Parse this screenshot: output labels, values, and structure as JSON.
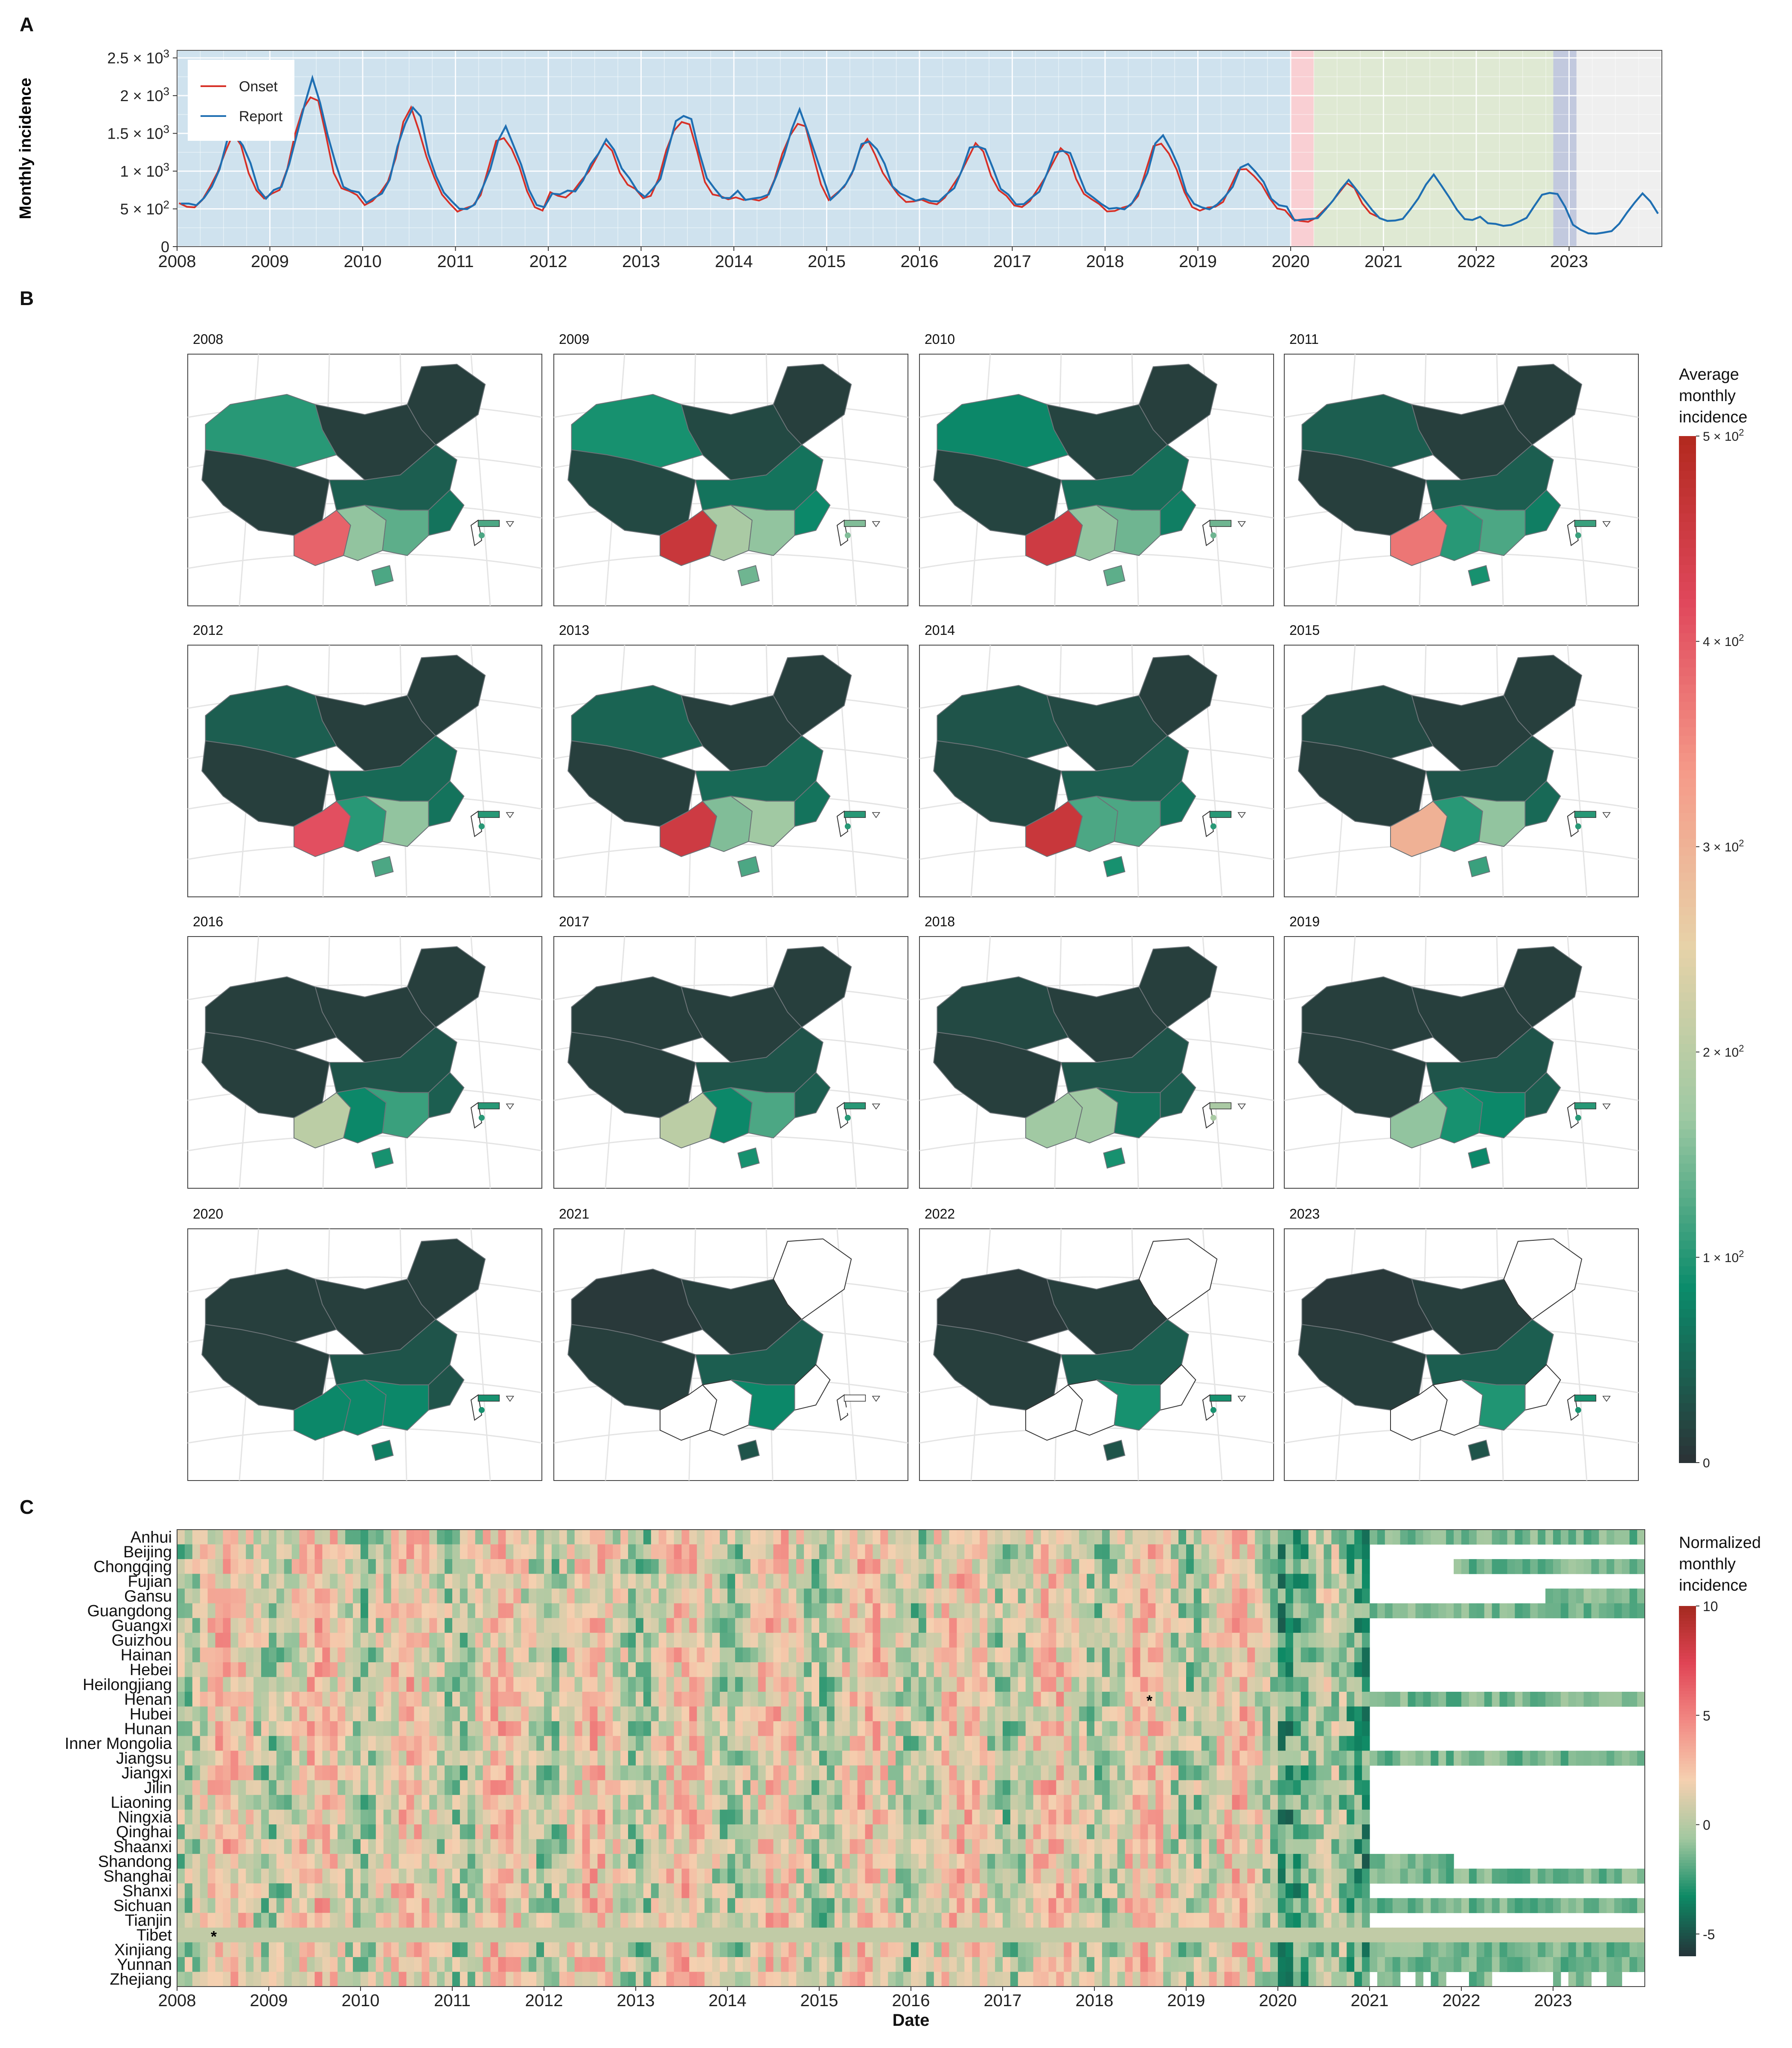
{
  "panel_labels": {
    "a": "A",
    "b": "B",
    "c": "C"
  },
  "colors": {
    "onset": "#d73027",
    "report": "#1f6fb2",
    "phase_pre": "#cfe2ee",
    "phase_red": "#f9cfd3",
    "phase_green": "#dfe9d3",
    "phase_purple": "#c2c9de",
    "phase_grey": "#efefef",
    "map_dark": "#2b3437",
    "map_scale": [
      "#2b3437",
      "#0b8c6b",
      "#9ec9a3",
      "#e7d2a8",
      "#f59b89",
      "#e0485c",
      "#b1281d"
    ],
    "heat_scale": [
      "#24353a",
      "#0e8a65",
      "#a3c8a0",
      "#f5d0b0",
      "#f28a84",
      "#e04455",
      "#a3291e"
    ]
  },
  "chart_data": [
    {
      "type": "line",
      "id": "A",
      "xlabel": "",
      "ylabel": "Monthly incidence",
      "ylim": [
        0,
        2600
      ],
      "yticks": [
        "0",
        "5 × 10²",
        "1 × 10³",
        "1.5 × 10³",
        "2 × 10³",
        "2.5 × 10³"
      ],
      "ytick_values": [
        0,
        500,
        1000,
        1500,
        2000,
        2500
      ],
      "xticks": [
        "2008",
        "2009",
        "2010",
        "2011",
        "2012",
        "2013",
        "2014",
        "2015",
        "2016",
        "2017",
        "2018",
        "2019",
        "2020",
        "2021",
        "2022",
        "2023"
      ],
      "x_start_year": 2008,
      "legend": {
        "position": "top-left",
        "entries": [
          "Onset",
          "Report"
        ]
      },
      "shaded_periods": [
        {
          "from": 2008.0,
          "to": 2020.0,
          "color": "#cfe2ee"
        },
        {
          "from": 2020.0,
          "to": 2020.25,
          "color": "#f9cfd3"
        },
        {
          "from": 2020.25,
          "to": 2022.83,
          "color": "#dfe9d3"
        },
        {
          "from": 2022.83,
          "to": 2023.08,
          "color": "#c2c9de"
        },
        {
          "from": 2023.08,
          "to": 2024.0,
          "color": "#efefef"
        }
      ],
      "peaks": [
        {
          "year": 2008,
          "min": 550,
          "peak": 1500,
          "peak_month": 8
        },
        {
          "year": 2009,
          "min": 700,
          "peak": 2150,
          "peak_month": 6
        },
        {
          "year": 2010,
          "min": 600,
          "peak": 1850,
          "peak_month": 7
        },
        {
          "year": 2011,
          "min": 480,
          "peak": 1550,
          "peak_month": 7
        },
        {
          "year": 2012,
          "min": 700,
          "peak": 1380,
          "peak_month": 8
        },
        {
          "year": 2013,
          "min": 640,
          "peak": 1800,
          "peak_month": 6
        },
        {
          "year": 2014,
          "min": 620,
          "peak": 1750,
          "peak_month": 9
        },
        {
          "year": 2015,
          "min": 630,
          "peak": 1420,
          "peak_month": 6
        },
        {
          "year": 2016,
          "min": 600,
          "peak": 1380,
          "peak_month": 8
        },
        {
          "year": 2017,
          "min": 560,
          "peak": 1320,
          "peak_month": 7
        },
        {
          "year": 2018,
          "min": 490,
          "peak": 1470,
          "peak_month": 8
        },
        {
          "year": 2019,
          "min": 500,
          "peak": 1100,
          "peak_month": 7
        },
        {
          "year": 2020,
          "min": 350,
          "peak": 850,
          "peak_month": 8
        },
        {
          "year": 2021,
          "min": 330,
          "peak": 920,
          "peak_month": 7
        },
        {
          "year": 2022,
          "min": 280,
          "peak": 740,
          "peak_month": 10
        },
        {
          "year": 2023,
          "min": 170,
          "peak": 680,
          "peak_month": 10
        }
      ],
      "onset_end_year": 2021.0
    },
    {
      "type": "heatmap",
      "id": "B",
      "title": "",
      "panels": [
        "2008",
        "2009",
        "2010",
        "2011",
        "2012",
        "2013",
        "2014",
        "2015",
        "2016",
        "2017",
        "2018",
        "2019",
        "2020",
        "2021",
        "2022",
        "2023"
      ],
      "legend_title": [
        "Average",
        "monthly",
        "incidence"
      ],
      "legend_ticks": [
        "0",
        "1 × 10²",
        "2 × 10²",
        "3 × 10²",
        "4 × 10²",
        "5 × 10²"
      ],
      "legend_values": [
        0,
        100,
        200,
        300,
        400,
        500
      ],
      "region_values": [
        {
          "NW": 100,
          "YN": 390,
          "GX": 160,
          "GD": 130,
          "HN": 120,
          "S": 40,
          "FJ": 60,
          "TW": 120,
          "N": 10,
          "NE": 10
        },
        {
          "NW": 90,
          "YN": 460,
          "GX": 180,
          "GD": 160,
          "HN": 140,
          "S": 60,
          "FJ": 80,
          "TW": 150,
          "N": 20,
          "NE": 10
        },
        {
          "NW": 80,
          "YN": 450,
          "GX": 160,
          "GD": 140,
          "HN": 130,
          "S": 55,
          "FJ": 70,
          "TW": 140,
          "N": 15,
          "NE": 10
        },
        {
          "NW": 40,
          "YN": 370,
          "GX": 100,
          "GD": 120,
          "HN": 90,
          "S": 40,
          "FJ": 70,
          "TW": 110,
          "N": 10,
          "NE": 10
        },
        {
          "NW": 40,
          "YN": 410,
          "GX": 100,
          "GD": 160,
          "HN": 120,
          "S": 50,
          "FJ": 60,
          "TW": 100,
          "N": 10,
          "NE": 10
        },
        {
          "NW": 45,
          "YN": 450,
          "GX": 150,
          "GD": 170,
          "HN": 120,
          "S": 50,
          "FJ": 60,
          "TW": 100,
          "N": 10,
          "NE": 10
        },
        {
          "NW": 30,
          "YN": 460,
          "GX": 120,
          "GD": 120,
          "HN": 90,
          "S": 40,
          "FJ": 60,
          "TW": 100,
          "N": 20,
          "NE": 10
        },
        {
          "NW": 20,
          "YN": 300,
          "GX": 100,
          "GD": 160,
          "HN": 110,
          "S": 30,
          "FJ": 50,
          "TW": 100,
          "N": 10,
          "NE": 10
        },
        {
          "NW": 10,
          "YN": 200,
          "GX": 80,
          "GD": 110,
          "HN": 90,
          "S": 30,
          "FJ": 40,
          "TW": 100,
          "N": 10,
          "NE": 10
        },
        {
          "NW": 10,
          "YN": 200,
          "GX": 80,
          "GD": 120,
          "HN": 90,
          "S": 30,
          "FJ": 40,
          "TW": 100,
          "N": 10,
          "NE": 10
        },
        {
          "NW": 20,
          "YN": 170,
          "GX": 170,
          "GD": 60,
          "HN": 90,
          "S": 30,
          "FJ": 40,
          "TW": 180,
          "N": 10,
          "NE": 10
        },
        {
          "NW": 10,
          "YN": 160,
          "GX": 90,
          "GD": 80,
          "HN": 80,
          "S": 30,
          "FJ": 40,
          "TW": 100,
          "N": 10,
          "NE": 10
        },
        {
          "NW": 10,
          "YN": 80,
          "GX": 80,
          "GD": 80,
          "HN": 70,
          "S": 30,
          "FJ": 30,
          "TW": 90,
          "N": 10,
          "NE": 10
        },
        {
          "NW": 5,
          "YN": -1,
          "GX": -1,
          "GD": 80,
          "HN": 30,
          "S": 40,
          "FJ": -1,
          "TW": -1,
          "N": 10,
          "NE": -1
        },
        {
          "NW": 5,
          "YN": -1,
          "GX": -1,
          "GD": 90,
          "HN": 30,
          "S": 40,
          "FJ": -1,
          "TW": 90,
          "N": 10,
          "NE": -1
        },
        {
          "NW": 5,
          "YN": -1,
          "GX": -1,
          "GD": 95,
          "HN": 30,
          "S": 40,
          "FJ": -1,
          "TW": 90,
          "N": 10,
          "NE": -1
        }
      ]
    },
    {
      "type": "heatmap",
      "id": "C",
      "xlabel": "Date",
      "ylabel": "",
      "xticks": [
        "2008",
        "2009",
        "2010",
        "2011",
        "2012",
        "2013",
        "2014",
        "2015",
        "2016",
        "2017",
        "2018",
        "2019",
        "2020",
        "2021",
        "2022",
        "2023"
      ],
      "rows": [
        "Anhui",
        "Beijing",
        "Chongqing",
        "Fujian",
        "Gansu",
        "Guangdong",
        "Guangxi",
        "Guizhou",
        "Hainan",
        "Hebei",
        "Heilongjiang",
        "Henan",
        "Hubei",
        "Hunan",
        "Inner Mongolia",
        "Jiangsu",
        "Jiangxi",
        "Jilin",
        "Liaoning",
        "Ningxia",
        "Qinghai",
        "Shaanxi",
        "Shandong",
        "Shanghai",
        "Shanxi",
        "Sichuan",
        "Tianjin",
        "Tibet",
        "Xinjiang",
        "Yunnan",
        "Zhejiang"
      ],
      "legend_title": [
        "Normalized",
        "monthly",
        "incidence"
      ],
      "legend_ticks": [
        "10",
        "5",
        "0",
        "-5"
      ],
      "legend_values": [
        10,
        5,
        0,
        -5
      ],
      "value_range": [
        -6,
        10
      ],
      "markers": [
        {
          "row": "Henan",
          "date": "2018.6",
          "label": "*"
        },
        {
          "row": "Tibet",
          "date": "2008.4",
          "label": "*"
        }
      ],
      "post_2021_rows": {
        "Anhui": "full",
        "Chongqing": "from 2021.9",
        "Gansu": "from 2022.9",
        "Guangdong": "full",
        "Henan": "full",
        "Jiangsu": "full",
        "Shandong": "until 2021.9",
        "Shanghai": "full",
        "Sichuan": "full",
        "Tibet": "full",
        "Xinjiang": "full",
        "Yunnan": "full",
        "Zhejiang": "gappy"
      }
    }
  ]
}
